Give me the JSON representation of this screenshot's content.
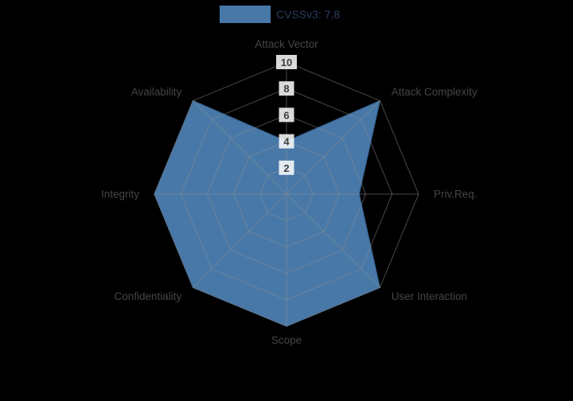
{
  "chart_data": {
    "type": "radar",
    "legend_label": "CVSSv3: 7.8",
    "categories": [
      "Attack Vector",
      "Attack Complexity",
      "Priv.Req.",
      "User Interaction",
      "Scope",
      "Confidentiality",
      "Integrity",
      "Availability"
    ],
    "values": [
      4,
      10,
      5.5,
      10,
      10,
      10,
      10,
      10
    ],
    "range": [
      0,
      10
    ],
    "radial_ticks": [
      2,
      4,
      6,
      8,
      10
    ],
    "grid": true,
    "legend_position": "top-center",
    "series_color": "#4878a8",
    "series_outline": "#35618e",
    "grid_color": "#909090",
    "label_color": "#454545",
    "tick_color": "#3d3d3d",
    "tick_box_fill": "rgba(255,255,255,0.85)",
    "legend_text_color": "#2a3f5f",
    "background": "#000000"
  }
}
